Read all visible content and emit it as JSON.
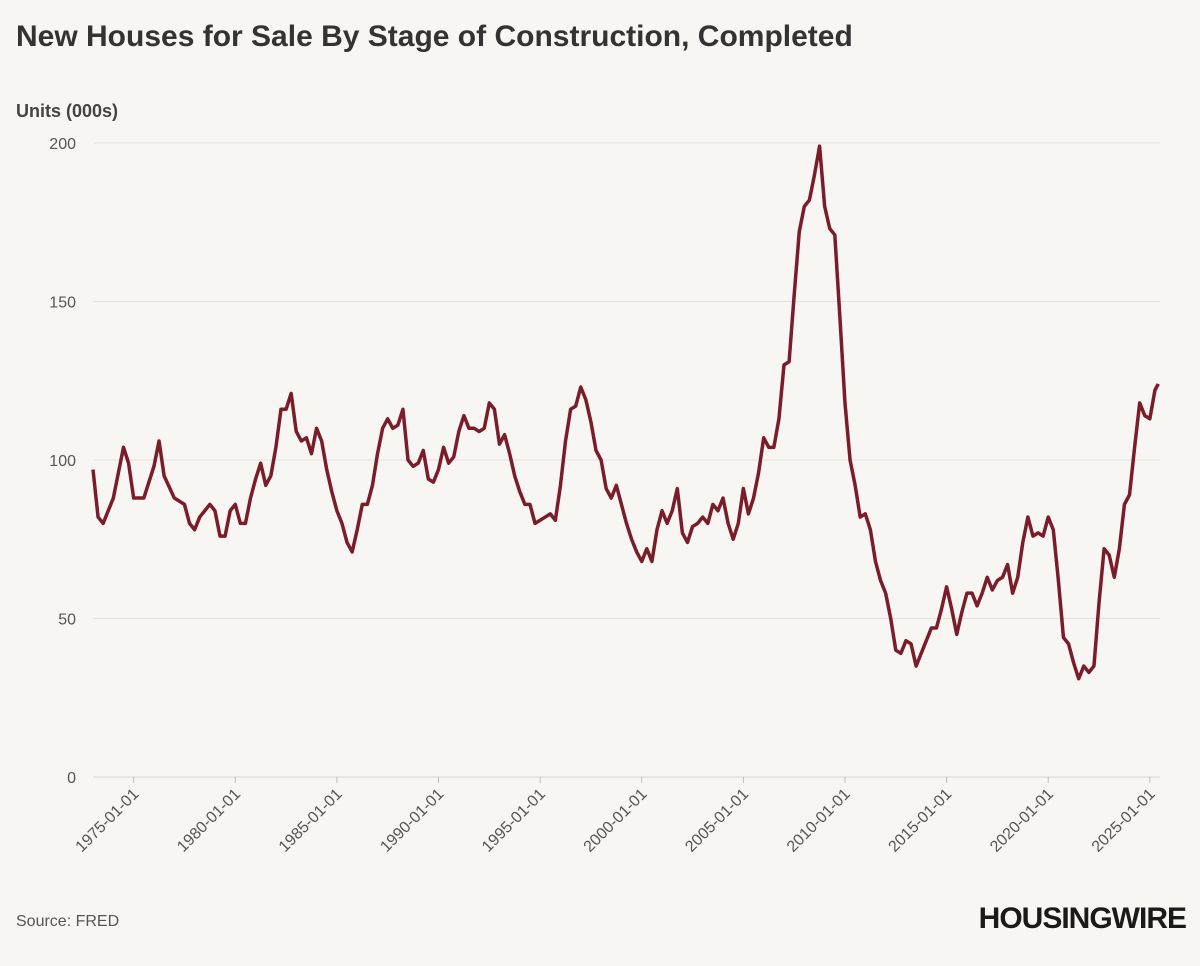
{
  "chart_data": {
    "type": "line",
    "title": "New Houses for Sale By Stage of Construction, Completed",
    "y_label": "Units (000s)",
    "source": "Source: FRED",
    "brand": "HOUSINGWIRE",
    "color": "#7b1c2a",
    "grid": true,
    "xlim": [
      "1973-01-01",
      "2025-07-01"
    ],
    "xticks": [
      "1975-01-01",
      "1980-01-01",
      "1985-01-01",
      "1990-01-01",
      "1995-01-01",
      "2000-01-01",
      "2005-01-01",
      "2010-01-01",
      "2015-01-01",
      "2020-01-01",
      "2025-01-01"
    ],
    "ylim": [
      0,
      200
    ],
    "yticks": [
      0,
      50,
      100,
      150,
      200
    ],
    "x": [
      "1973-01-01",
      "1973-04-01",
      "1973-07-01",
      "1974-01-01",
      "1974-07-01",
      "1974-10-01",
      "1975-01-01",
      "1975-07-01",
      "1976-01-01",
      "1976-04-01",
      "1976-07-01",
      "1977-01-01",
      "1977-07-01",
      "1977-10-01",
      "1978-01-01",
      "1978-04-01",
      "1978-07-01",
      "1978-10-01",
      "1979-01-01",
      "1979-04-01",
      "1979-07-01",
      "1979-10-01",
      "1980-01-01",
      "1980-04-01",
      "1980-07-01",
      "1980-10-01",
      "1981-01-01",
      "1981-04-01",
      "1981-07-01",
      "1981-10-01",
      "1982-01-01",
      "1982-04-01",
      "1982-07-01",
      "1982-10-01",
      "1983-01-01",
      "1983-04-01",
      "1983-07-01",
      "1983-10-01",
      "1984-01-01",
      "1984-04-01",
      "1984-07-01",
      "1984-10-01",
      "1985-01-01",
      "1985-04-01",
      "1985-07-01",
      "1985-10-01",
      "1986-01-01",
      "1986-04-01",
      "1986-07-01",
      "1986-10-01",
      "1987-01-01",
      "1987-04-01",
      "1987-07-01",
      "1987-10-01",
      "1988-01-01",
      "1988-04-01",
      "1988-07-01",
      "1988-10-01",
      "1989-01-01",
      "1989-04-01",
      "1989-07-01",
      "1989-10-01",
      "1990-01-01",
      "1990-04-01",
      "1990-07-01",
      "1990-10-01",
      "1991-01-01",
      "1991-04-01",
      "1991-07-01",
      "1991-10-01",
      "1992-01-01",
      "1992-04-01",
      "1992-07-01",
      "1992-10-01",
      "1993-01-01",
      "1993-04-01",
      "1993-07-01",
      "1993-10-01",
      "1994-01-01",
      "1994-04-01",
      "1994-07-01",
      "1994-10-01",
      "1995-01-01",
      "1995-04-01",
      "1995-07-01",
      "1995-10-01",
      "1996-01-01",
      "1996-04-01",
      "1996-07-01",
      "1996-10-01",
      "1997-01-01",
      "1997-04-01",
      "1997-07-01",
      "1997-10-01",
      "1998-01-01",
      "1998-04-01",
      "1998-07-01",
      "1998-10-01",
      "1999-01-01",
      "1999-04-01",
      "1999-07-01",
      "1999-10-01",
      "2000-01-01",
      "2000-04-01",
      "2000-07-01",
      "2000-10-01",
      "2001-01-01",
      "2001-04-01",
      "2001-07-01",
      "2001-10-01",
      "2002-01-01",
      "2002-04-01",
      "2002-07-01",
      "2002-10-01",
      "2003-01-01",
      "2003-04-01",
      "2003-07-01",
      "2003-10-01",
      "2004-01-01",
      "2004-04-01",
      "2004-07-01",
      "2004-10-01",
      "2005-01-01",
      "2005-04-01",
      "2005-07-01",
      "2005-10-01",
      "2006-01-01",
      "2006-04-01",
      "2006-07-01",
      "2006-10-01",
      "2007-01-01",
      "2007-04-01",
      "2007-07-01",
      "2007-10-01",
      "2008-01-01",
      "2008-04-01",
      "2008-07-01",
      "2008-10-01",
      "2009-01-01",
      "2009-04-01",
      "2009-07-01",
      "2009-10-01",
      "2010-01-01",
      "2010-04-01",
      "2010-07-01",
      "2010-10-01",
      "2011-01-01",
      "2011-04-01",
      "2011-07-01",
      "2011-10-01",
      "2012-01-01",
      "2012-04-01",
      "2012-07-01",
      "2012-10-01",
      "2013-01-01",
      "2013-04-01",
      "2013-07-01",
      "2013-10-01",
      "2014-01-01",
      "2014-04-01",
      "2014-07-01",
      "2014-10-01",
      "2015-01-01",
      "2015-04-01",
      "2015-07-01",
      "2015-10-01",
      "2016-01-01",
      "2016-04-01",
      "2016-07-01",
      "2016-10-01",
      "2017-01-01",
      "2017-04-01",
      "2017-07-01",
      "2017-10-01",
      "2018-01-01",
      "2018-04-01",
      "2018-07-01",
      "2018-10-01",
      "2019-01-01",
      "2019-04-01",
      "2019-07-01",
      "2019-10-01",
      "2020-01-01",
      "2020-04-01",
      "2020-07-01",
      "2020-10-01",
      "2021-01-01",
      "2021-04-01",
      "2021-07-01",
      "2021-10-01",
      "2022-01-01",
      "2022-04-01",
      "2022-07-01",
      "2022-10-01",
      "2023-01-01",
      "2023-04-01",
      "2023-07-01",
      "2023-10-01",
      "2024-01-01",
      "2024-04-01",
      "2024-07-01",
      "2024-10-01",
      "2025-01-01",
      "2025-04-01",
      "2025-06-01"
    ],
    "values": [
      97,
      82,
      80,
      88,
      104,
      99,
      88,
      88,
      98,
      106,
      95,
      88,
      86,
      80,
      78,
      82,
      84,
      86,
      84,
      76,
      76,
      84,
      86,
      80,
      80,
      88,
      94,
      99,
      92,
      95,
      104,
      116,
      116,
      121,
      109,
      106,
      107,
      102,
      110,
      106,
      97,
      90,
      84,
      80,
      74,
      71,
      78,
      86,
      86,
      92,
      102,
      110,
      113,
      110,
      111,
      116,
      100,
      98,
      99,
      103,
      94,
      93,
      97,
      104,
      99,
      101,
      109,
      114,
      110,
      110,
      109,
      110,
      118,
      116,
      105,
      108,
      102,
      95,
      90,
      86,
      86,
      80,
      81,
      82,
      83,
      81,
      92,
      106,
      116,
      117,
      123,
      119,
      112,
      103,
      100,
      91,
      88,
      92,
      86,
      80,
      75,
      71,
      68,
      72,
      68,
      78,
      84,
      80,
      84,
      91,
      77,
      74,
      79,
      80,
      82,
      80,
      86,
      84,
      88,
      80,
      75,
      80,
      91,
      83,
      88,
      96,
      107,
      104,
      104,
      113,
      130,
      131,
      152,
      172,
      180,
      182,
      190,
      199,
      180,
      173,
      171,
      145,
      118,
      100,
      92,
      82,
      83,
      78,
      68,
      62,
      58,
      50,
      40,
      39,
      43,
      42,
      35,
      39,
      43,
      47,
      47,
      53,
      60,
      53,
      45,
      52,
      58,
      58,
      54,
      58,
      63,
      59,
      62,
      63,
      67,
      58,
      63,
      74,
      82,
      76,
      77,
      76,
      82,
      78,
      62,
      44,
      42,
      36,
      31,
      35,
      33,
      35,
      55,
      72,
      70,
      63,
      72,
      86,
      89,
      104,
      118,
      114,
      113,
      122,
      124
    ]
  }
}
